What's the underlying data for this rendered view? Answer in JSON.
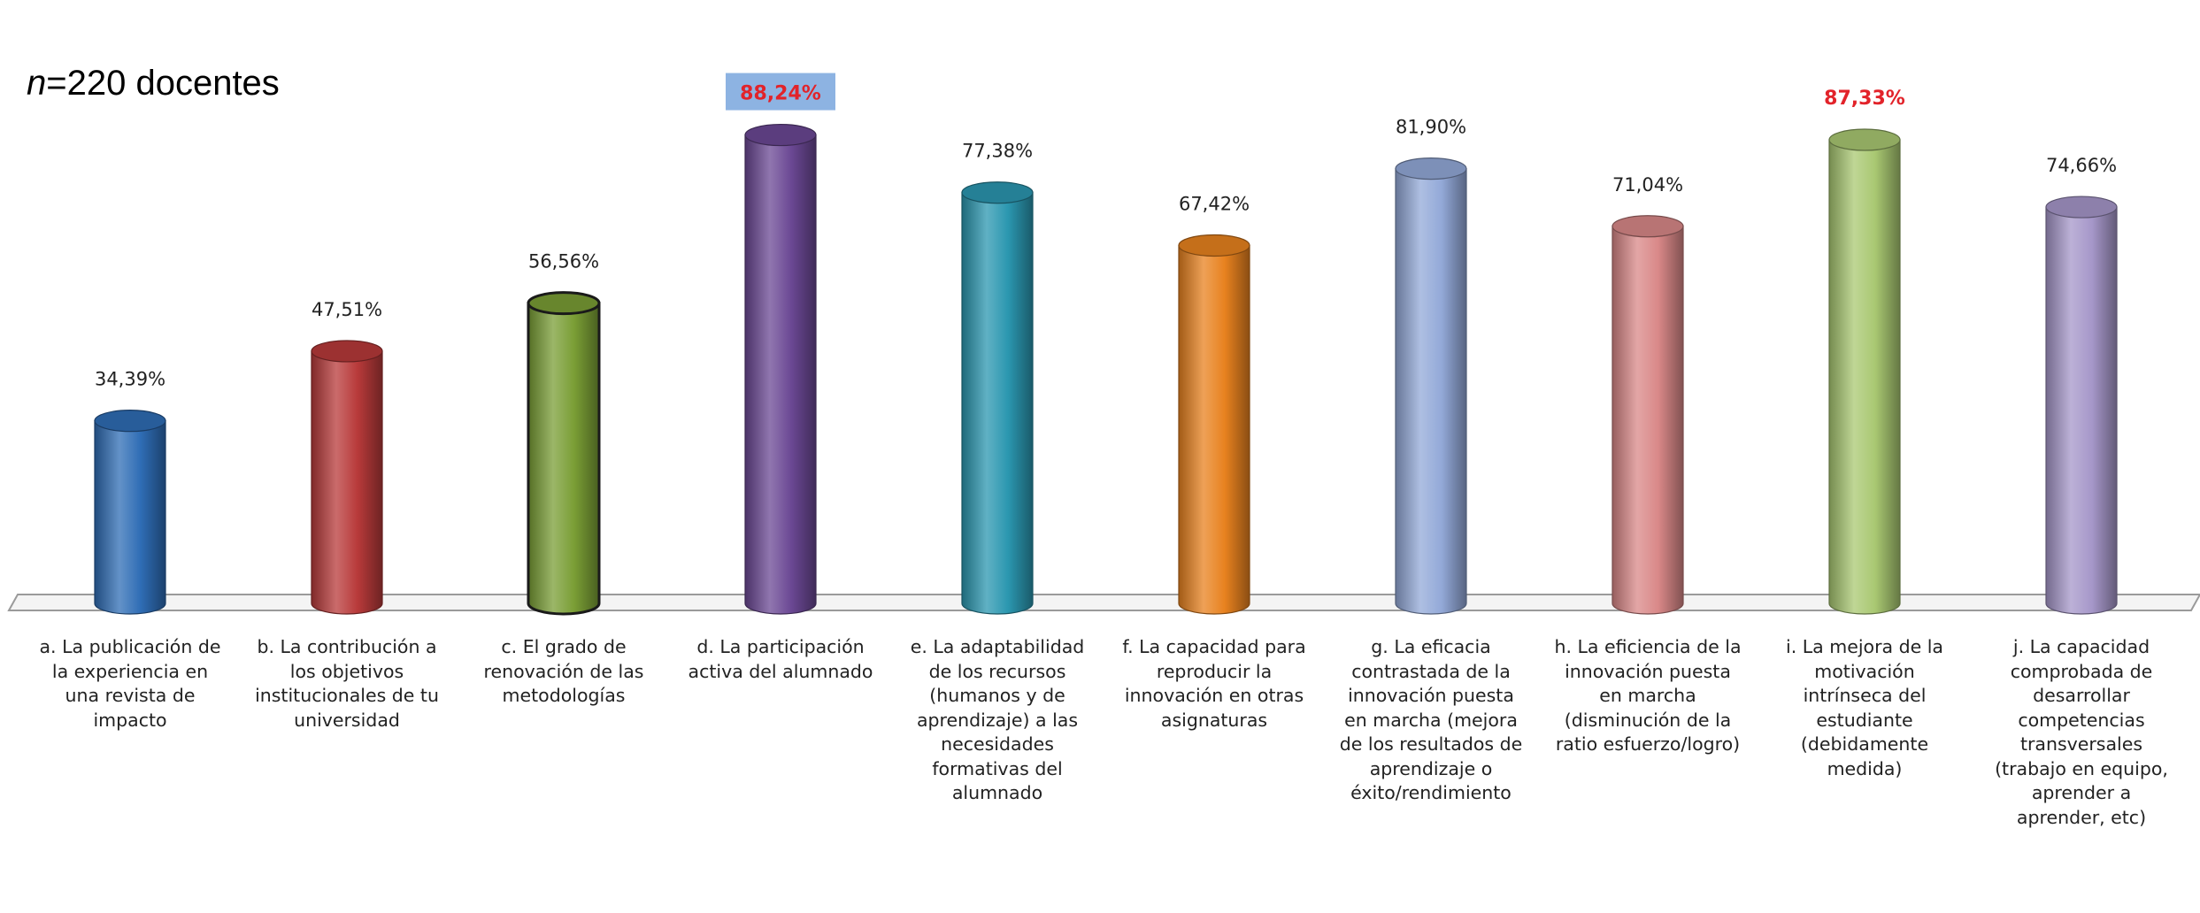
{
  "sample_label": {
    "var": "n",
    "rest": "=220 docentes"
  },
  "chart_data": {
    "type": "bar",
    "style": "3d-cylinder",
    "unit": "%",
    "ylim": [
      0,
      100
    ],
    "grid": false,
    "categories": [
      "a. La publicación de la experiencia en una revista de impacto",
      "b. La contribución a los objetivos institucionales de tu universidad",
      "c. El grado de renovación de las metodologías",
      "d. La participación activa del alumnado",
      "e. La adaptabilidad de los recursos (humanos y de aprendizaje) a las necesidades formativas del alumnado",
      "f. La capacidad para reproducir la innovación en otras asignaturas",
      "g. La eficacia contrastada de la innovación puesta en marcha (mejora de los resultados de aprendizaje o éxito/rendimiento",
      "h. La eficiencia de la innovación puesta en marcha (disminución de la ratio esfuerzo/logro)",
      "i. La mejora de la motivación intrínseca del estudiante (debidamente medida)",
      "j. La capacidad comprobada de desarrollar competencias transversales (trabajo en equipo, aprender a aprender, etc)"
    ],
    "values": [
      34.39,
      47.51,
      56.56,
      88.24,
      77.38,
      67.42,
      81.9,
      71.04,
      87.33,
      74.66
    ],
    "data_labels": [
      "34,39%",
      "47,51%",
      "56,56%",
      "88,24%",
      "77,38%",
      "67,42%",
      "81,90%",
      "71,04%",
      "87,33%",
      "74,66%"
    ],
    "highlighted": [
      3,
      8
    ],
    "colors": [
      "#2f6db5",
      "#b83a3a",
      "#7a9e35",
      "#6b4894",
      "#2b97b0",
      "#e8821f",
      "#93a9d8",
      "#d98888",
      "#a9c872",
      "#a697c9"
    ],
    "highlight_color": "#e2232a",
    "highlight_box_color": "#8db3e2"
  }
}
